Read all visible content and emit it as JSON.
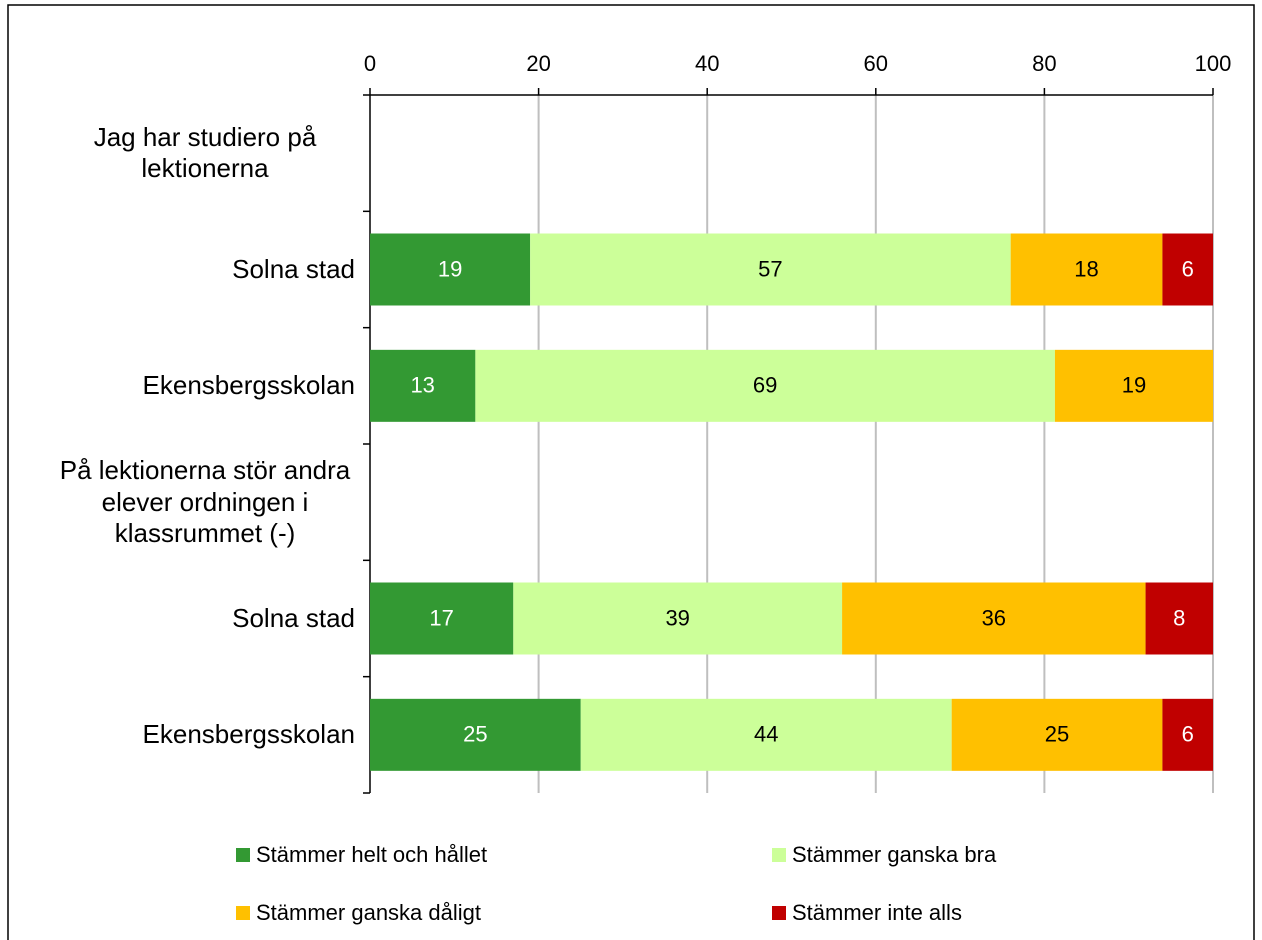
{
  "chart_data": {
    "type": "stacked-bar-horizontal",
    "categories": [
      "Jag har studiero på lektionerna",
      "Solna stad",
      "Ekensbergsskolan",
      "På lektionerna stör andra elever ordningen i klassrummet (-)",
      "Solna stad",
      "Ekensbergsskolan"
    ],
    "series": [
      {
        "name": "Stämmer helt och hållet",
        "color": "#339933",
        "label_color": "#ffffff",
        "values": [
          null,
          19,
          12.5,
          null,
          17,
          25
        ],
        "value_labels": [
          null,
          "19",
          "13",
          null,
          "17",
          "25"
        ]
      },
      {
        "name": "Stämmer ganska bra",
        "color": "#ccff99",
        "label_color": "#000000",
        "values": [
          null,
          57,
          68.75,
          null,
          39,
          44
        ],
        "value_labels": [
          null,
          "57",
          "69",
          null,
          "39",
          "44"
        ]
      },
      {
        "name": "Stämmer ganska dåligt",
        "color": "#ffc000",
        "label_color": "#000000",
        "values": [
          null,
          18,
          18.75,
          null,
          36,
          25
        ],
        "value_labels": [
          null,
          "18",
          "19",
          null,
          "36",
          "25"
        ]
      },
      {
        "name": "Stämmer inte alls",
        "color": "#c00000",
        "label_color": "#ffffff",
        "values": [
          null,
          6,
          null,
          null,
          8,
          6
        ],
        "value_labels": [
          null,
          "6",
          null,
          null,
          "8",
          "6"
        ]
      }
    ],
    "xlim": [
      0,
      100
    ],
    "xticks": [
      0,
      20,
      40,
      60,
      80,
      100
    ],
    "grid": true
  }
}
